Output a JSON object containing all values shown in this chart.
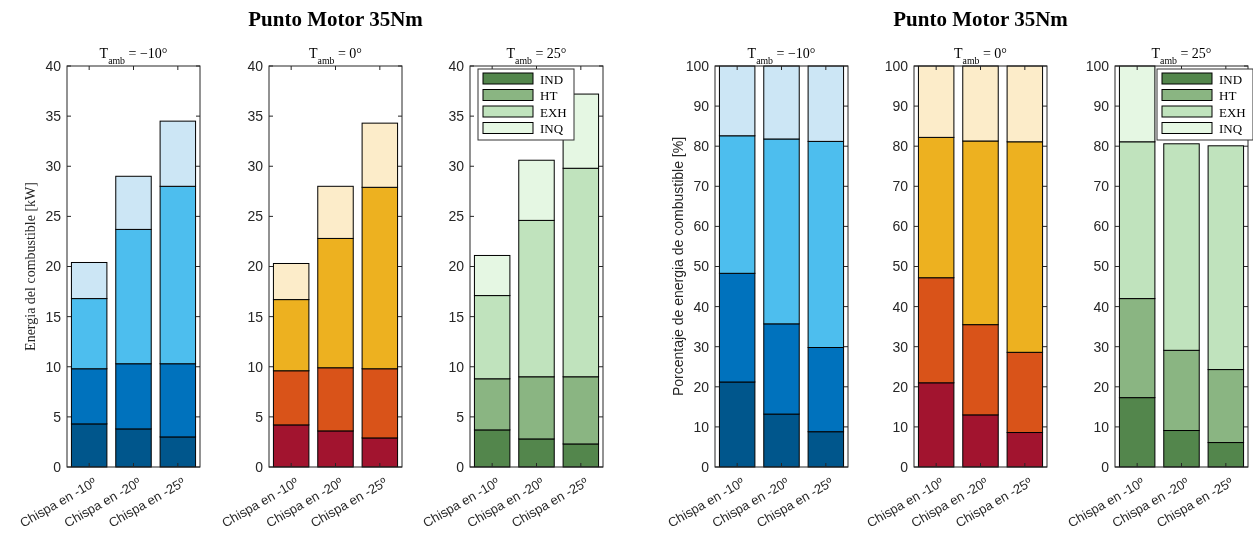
{
  "chart_data": [
    {
      "type": "bar",
      "stacked": true,
      "subtitle": "T$_{amb}$ = −10°",
      "ylabel": "Energia del combustible [kW]",
      "categories": [
        "Chispa en -10º",
        "Chispa en -20º",
        "Chispa en -25º"
      ],
      "ylim": [
        0,
        40
      ],
      "yticks": [
        0,
        5,
        10,
        15,
        20,
        25,
        30,
        35,
        40
      ],
      "grid": false,
      "legend": false,
      "series": [
        {
          "color": "#00568c",
          "values": [
            4.3,
            3.8,
            3.0
          ]
        },
        {
          "color": "#0072bd",
          "values": [
            5.5,
            6.5,
            7.3
          ]
        },
        {
          "color": "#4dbeee",
          "values": [
            7.0,
            13.4,
            17.7
          ]
        },
        {
          "color": "#cce6f5",
          "values": [
            3.6,
            5.3,
            6.5
          ]
        }
      ]
    },
    {
      "type": "bar",
      "stacked": true,
      "title": "Punto Motor 35Nm",
      "subtitle": "T$_{amb}$ = 0°",
      "categories": [
        "Chispa en -10º",
        "Chispa en -20º",
        "Chispa en -25º"
      ],
      "ylim": [
        0,
        40
      ],
      "yticks": [
        0,
        5,
        10,
        15,
        20,
        25,
        30,
        35,
        40
      ],
      "grid": false,
      "legend": false,
      "series": [
        {
          "color": "#a2142f",
          "values": [
            4.2,
            3.6,
            2.9
          ]
        },
        {
          "color": "#d95319",
          "values": [
            5.4,
            6.3,
            6.9
          ]
        },
        {
          "color": "#edb120",
          "values": [
            7.1,
            12.9,
            18.1
          ]
        },
        {
          "color": "#fcecc9",
          "values": [
            3.6,
            5.2,
            6.4
          ]
        }
      ]
    },
    {
      "type": "bar",
      "stacked": true,
      "subtitle": "T$_{amb}$ = 25°",
      "categories": [
        "Chispa en -10º",
        "Chispa en -20º",
        "Chispa en -25º"
      ],
      "ylim": [
        0,
        40
      ],
      "yticks": [
        0,
        5,
        10,
        15,
        20,
        25,
        30,
        35,
        40
      ],
      "grid": false,
      "legend": "top left",
      "series": [
        {
          "name": "IND",
          "color": "#53864c",
          "values": [
            3.7,
            2.8,
            2.3
          ]
        },
        {
          "name": "HT",
          "color": "#8ab582",
          "values": [
            5.1,
            6.2,
            6.7
          ]
        },
        {
          "name": "EXH",
          "color": "#c0e3bd",
          "values": [
            8.3,
            15.6,
            20.8
          ]
        },
        {
          "name": "INQ",
          "color": "#e5f7e3",
          "values": [
            4.0,
            6.0,
            7.4
          ]
        }
      ]
    },
    {
      "type": "bar",
      "stacked": true,
      "subtitle": "T$_{amb}$ = −10°",
      "ylabel": "Porcentaje de energia de combustible [%]",
      "categories": [
        "Chispa en -10º",
        "Chispa en -20º",
        "Chispa en -25º"
      ],
      "ylim": [
        0,
        100
      ],
      "yticks": [
        0,
        10,
        20,
        30,
        40,
        50,
        60,
        70,
        80,
        90,
        100
      ],
      "grid": false,
      "legend": false,
      "series": [
        {
          "color": "#00568c",
          "values": [
            21.2,
            13.2,
            8.8
          ]
        },
        {
          "color": "#0072bd",
          "values": [
            27.1,
            22.5,
            21.0
          ]
        },
        {
          "color": "#4dbeee",
          "values": [
            34.3,
            46.1,
            51.4
          ]
        },
        {
          "color": "#cce6f5",
          "values": [
            17.4,
            18.2,
            18.8
          ]
        }
      ]
    },
    {
      "type": "bar",
      "stacked": true,
      "title": "Punto Motor 35Nm",
      "subtitle": "T$_{amb}$ = 0°",
      "categories": [
        "Chispa en -10º",
        "Chispa en -20º",
        "Chispa en -25º"
      ],
      "ylim": [
        0,
        100
      ],
      "yticks": [
        0,
        10,
        20,
        30,
        40,
        50,
        60,
        70,
        80,
        90,
        100
      ],
      "grid": false,
      "legend": false,
      "series": [
        {
          "color": "#a2142f",
          "values": [
            21.0,
            13.0,
            8.6
          ]
        },
        {
          "color": "#d95319",
          "values": [
            26.2,
            22.5,
            20.0
          ]
        },
        {
          "color": "#edb120",
          "values": [
            35.0,
            45.8,
            52.5
          ]
        },
        {
          "color": "#fcecc9",
          "values": [
            17.8,
            18.7,
            18.9
          ]
        }
      ]
    },
    {
      "type": "bar",
      "stacked": true,
      "subtitle": "T$_{amb}$ = 25°",
      "categories": [
        "Chispa en -10º",
        "Chispa en -20º",
        "Chispa en -25º"
      ],
      "ylim": [
        0,
        100
      ],
      "yticks": [
        0,
        10,
        20,
        30,
        40,
        50,
        60,
        70,
        80,
        90,
        100
      ],
      "grid": false,
      "legend": "top right",
      "series": [
        {
          "name": "IND",
          "color": "#53864c",
          "values": [
            17.3,
            9.1,
            6.1
          ]
        },
        {
          "name": "HT",
          "color": "#8ab582",
          "values": [
            24.7,
            20.0,
            18.2
          ]
        },
        {
          "name": "EXH",
          "color": "#c0e3bd",
          "values": [
            39.1,
            51.5,
            55.8
          ]
        },
        {
          "name": "INQ",
          "color": "#e5f7e3",
          "values": [
            18.9,
            null,
            null
          ]
        }
      ]
    }
  ]
}
